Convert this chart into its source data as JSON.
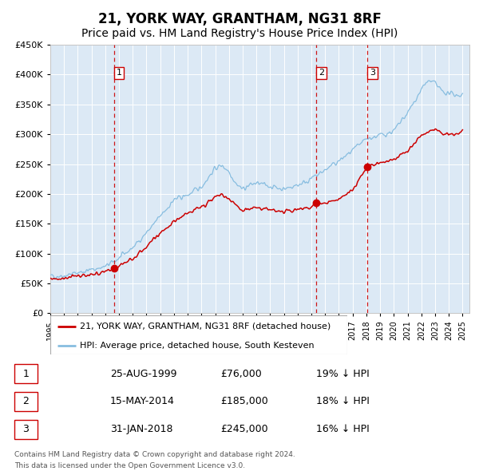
{
  "title": "21, YORK WAY, GRANTHAM, NG31 8RF",
  "subtitle": "Price paid vs. HM Land Registry's House Price Index (HPI)",
  "title_fontsize": 12,
  "subtitle_fontsize": 10,
  "background_color": "#ffffff",
  "plot_bg_color": "#dce9f5",
  "grid_color": "#ffffff",
  "ylim": [
    0,
    450000
  ],
  "yticks": [
    0,
    50000,
    100000,
    150000,
    200000,
    250000,
    300000,
    350000,
    400000,
    450000
  ],
  "xlim_start": 1995.0,
  "xlim_end": 2025.5,
  "xtick_years": [
    1995,
    1996,
    1997,
    1998,
    1999,
    2000,
    2001,
    2002,
    2003,
    2004,
    2005,
    2006,
    2007,
    2008,
    2009,
    2010,
    2011,
    2012,
    2013,
    2014,
    2015,
    2016,
    2017,
    2018,
    2019,
    2020,
    2021,
    2022,
    2023,
    2024,
    2025
  ],
  "hpi_color": "#87bde0",
  "price_color": "#cc0000",
  "sale_marker_color": "#cc0000",
  "vline_color": "#cc0000",
  "sales": [
    {
      "date": 1999.646,
      "price": 76000,
      "label": "1"
    },
    {
      "date": 2014.371,
      "price": 185000,
      "label": "2"
    },
    {
      "date": 2018.083,
      "price": 245000,
      "label": "3"
    }
  ],
  "legend_price_label": "21, YORK WAY, GRANTHAM, NG31 8RF (detached house)",
  "legend_hpi_label": "HPI: Average price, detached house, South Kesteven",
  "table_rows": [
    {
      "num": "1",
      "date": "25-AUG-1999",
      "price": "£76,000",
      "hpi": "19% ↓ HPI"
    },
    {
      "num": "2",
      "date": "15-MAY-2014",
      "price": "£185,000",
      "hpi": "18% ↓ HPI"
    },
    {
      "num": "3",
      "date": "31-JAN-2018",
      "price": "£245,000",
      "hpi": "16% ↓ HPI"
    }
  ],
  "footer1": "Contains HM Land Registry data © Crown copyright and database right 2024.",
  "footer2": "This data is licensed under the Open Government Licence v3.0.",
  "hpi_anchors": [
    [
      1995.0,
      62000
    ],
    [
      1996.0,
      63000
    ],
    [
      1997.0,
      68000
    ],
    [
      1998.0,
      73000
    ],
    [
      1999.0,
      78000
    ],
    [
      2000.0,
      92000
    ],
    [
      2001.0,
      110000
    ],
    [
      2002.0,
      135000
    ],
    [
      2003.0,
      162000
    ],
    [
      2004.0,
      190000
    ],
    [
      2005.0,
      198000
    ],
    [
      2006.0,
      212000
    ],
    [
      2007.0,
      243000
    ],
    [
      2007.5,
      248000
    ],
    [
      2008.0,
      238000
    ],
    [
      2008.5,
      218000
    ],
    [
      2009.0,
      208000
    ],
    [
      2009.5,
      215000
    ],
    [
      2010.0,
      218000
    ],
    [
      2011.0,
      213000
    ],
    [
      2012.0,
      208000
    ],
    [
      2013.0,
      215000
    ],
    [
      2014.0,
      225000
    ],
    [
      2015.0,
      240000
    ],
    [
      2016.0,
      255000
    ],
    [
      2017.0,
      272000
    ],
    [
      2018.0,
      292000
    ],
    [
      2019.0,
      298000
    ],
    [
      2020.0,
      305000
    ],
    [
      2021.0,
      335000
    ],
    [
      2022.0,
      375000
    ],
    [
      2022.5,
      390000
    ],
    [
      2023.0,
      385000
    ],
    [
      2023.5,
      372000
    ],
    [
      2024.0,
      368000
    ],
    [
      2025.0,
      365000
    ]
  ],
  "price_anchors": [
    [
      1995.0,
      58000
    ],
    [
      1996.0,
      59000
    ],
    [
      1997.0,
      62000
    ],
    [
      1998.0,
      65000
    ],
    [
      1999.0,
      68000
    ],
    [
      1999.646,
      76000
    ],
    [
      2000.0,
      80000
    ],
    [
      2001.0,
      92000
    ],
    [
      2002.0,
      112000
    ],
    [
      2003.0,
      135000
    ],
    [
      2004.0,
      153000
    ],
    [
      2005.0,
      168000
    ],
    [
      2006.0,
      178000
    ],
    [
      2007.0,
      195000
    ],
    [
      2007.5,
      198000
    ],
    [
      2008.0,
      192000
    ],
    [
      2008.5,
      182000
    ],
    [
      2009.0,
      172000
    ],
    [
      2009.5,
      175000
    ],
    [
      2010.0,
      176000
    ],
    [
      2011.0,
      174000
    ],
    [
      2012.0,
      170000
    ],
    [
      2013.0,
      174000
    ],
    [
      2014.0,
      178000
    ],
    [
      2014.371,
      185000
    ],
    [
      2015.0,
      183000
    ],
    [
      2016.0,
      192000
    ],
    [
      2017.0,
      208000
    ],
    [
      2018.083,
      245000
    ],
    [
      2019.0,
      252000
    ],
    [
      2020.0,
      258000
    ],
    [
      2021.0,
      272000
    ],
    [
      2022.0,
      297000
    ],
    [
      2023.0,
      308000
    ],
    [
      2023.5,
      302000
    ],
    [
      2024.0,
      298000
    ],
    [
      2025.0,
      303000
    ]
  ]
}
